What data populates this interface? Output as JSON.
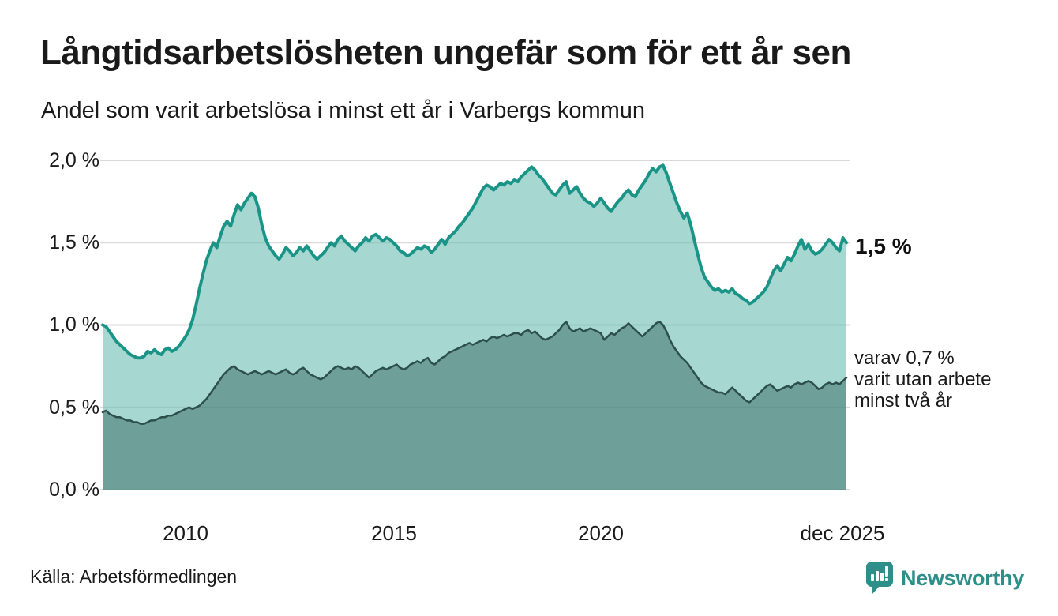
{
  "header": {
    "title": "Långtidsarbetslösheten ungefär som för ett år sen",
    "subtitle": "Andel som varit arbetslösa i minst ett år i Varbergs kommun"
  },
  "colors": {
    "line_primary": "#1b9488",
    "fill_primary": "rgba(106,190,178,0.6)",
    "line_secondary": "#2d4f4b",
    "fill_secondary": "rgba(53,103,98,0.5)",
    "gridline": "#d9d9d9",
    "brand_teal": "#2e8f88",
    "text": "#1a1a1a"
  },
  "chart_data": {
    "type": "area",
    "title": "Långtidsarbetslösheten ungefär som för ett år sen",
    "subtitle": "Andel som varit arbetslösa i minst ett år i Varbergs kommun",
    "unit": "%",
    "x_start_year": 2008,
    "x_end": "dec 2025",
    "months_per_point": 1,
    "ylim": [
      0,
      2.0
    ],
    "grid": true,
    "yticks": [
      {
        "label": "2,0 %",
        "value": 2.0
      },
      {
        "label": "1,5 %",
        "value": 1.5
      },
      {
        "label": "1,0 %",
        "value": 1.0
      },
      {
        "label": "0,5 %",
        "value": 0.5
      },
      {
        "label": "0,0 %",
        "value": 0.0
      }
    ],
    "xticks": [
      {
        "label": "2010",
        "year": 2010.0
      },
      {
        "label": "2015",
        "year": 2015.0
      },
      {
        "label": "2020",
        "year": 2020.0
      },
      {
        "label": "dec 2025",
        "year": 2025.9167
      }
    ],
    "series": [
      {
        "name": "Andel arbetslösa minst ett år",
        "end_label": "1,5 %",
        "last_value": 1.5,
        "values": [
          1.0,
          0.99,
          0.96,
          0.93,
          0.9,
          0.88,
          0.86,
          0.84,
          0.82,
          0.81,
          0.8,
          0.8,
          0.81,
          0.84,
          0.83,
          0.85,
          0.83,
          0.82,
          0.85,
          0.86,
          0.84,
          0.85,
          0.87,
          0.9,
          0.93,
          0.97,
          1.03,
          1.12,
          1.22,
          1.31,
          1.39,
          1.45,
          1.5,
          1.47,
          1.54,
          1.6,
          1.63,
          1.6,
          1.67,
          1.73,
          1.7,
          1.74,
          1.77,
          1.8,
          1.78,
          1.71,
          1.61,
          1.53,
          1.48,
          1.45,
          1.42,
          1.4,
          1.43,
          1.47,
          1.45,
          1.42,
          1.44,
          1.47,
          1.45,
          1.48,
          1.45,
          1.42,
          1.4,
          1.42,
          1.44,
          1.47,
          1.5,
          1.48,
          1.52,
          1.54,
          1.51,
          1.49,
          1.47,
          1.45,
          1.48,
          1.5,
          1.53,
          1.51,
          1.54,
          1.55,
          1.53,
          1.51,
          1.53,
          1.52,
          1.5,
          1.48,
          1.45,
          1.44,
          1.42,
          1.43,
          1.45,
          1.47,
          1.46,
          1.48,
          1.47,
          1.44,
          1.46,
          1.49,
          1.52,
          1.49,
          1.53,
          1.55,
          1.57,
          1.6,
          1.62,
          1.65,
          1.68,
          1.71,
          1.75,
          1.79,
          1.83,
          1.85,
          1.84,
          1.82,
          1.84,
          1.86,
          1.85,
          1.87,
          1.86,
          1.88,
          1.87,
          1.9,
          1.92,
          1.94,
          1.96,
          1.94,
          1.91,
          1.89,
          1.86,
          1.83,
          1.8,
          1.79,
          1.82,
          1.85,
          1.87,
          1.8,
          1.82,
          1.84,
          1.8,
          1.77,
          1.75,
          1.74,
          1.72,
          1.74,
          1.77,
          1.74,
          1.71,
          1.69,
          1.72,
          1.75,
          1.77,
          1.8,
          1.82,
          1.79,
          1.78,
          1.82,
          1.85,
          1.88,
          1.92,
          1.95,
          1.93,
          1.96,
          1.97,
          1.92,
          1.86,
          1.8,
          1.74,
          1.69,
          1.65,
          1.68,
          1.61,
          1.52,
          1.43,
          1.35,
          1.29,
          1.26,
          1.23,
          1.21,
          1.22,
          1.2,
          1.21,
          1.2,
          1.22,
          1.19,
          1.18,
          1.16,
          1.15,
          1.13,
          1.14,
          1.16,
          1.18,
          1.2,
          1.23,
          1.28,
          1.33,
          1.36,
          1.33,
          1.37,
          1.41,
          1.39,
          1.43,
          1.48,
          1.52,
          1.46,
          1.49,
          1.45,
          1.43,
          1.44,
          1.46,
          1.49,
          1.52,
          1.5,
          1.47,
          1.45,
          1.53,
          1.5
        ]
      },
      {
        "name": "varav utan arbete minst två år",
        "end_label": "varav 0,7 % varit utan arbete minst två år",
        "last_value": 0.7,
        "values": [
          0.47,
          0.48,
          0.46,
          0.45,
          0.44,
          0.44,
          0.43,
          0.42,
          0.42,
          0.41,
          0.41,
          0.4,
          0.4,
          0.41,
          0.42,
          0.42,
          0.43,
          0.44,
          0.44,
          0.45,
          0.45,
          0.46,
          0.47,
          0.48,
          0.49,
          0.5,
          0.49,
          0.5,
          0.51,
          0.53,
          0.55,
          0.58,
          0.61,
          0.64,
          0.67,
          0.7,
          0.72,
          0.74,
          0.75,
          0.73,
          0.72,
          0.71,
          0.7,
          0.71,
          0.72,
          0.71,
          0.7,
          0.71,
          0.72,
          0.71,
          0.7,
          0.71,
          0.72,
          0.73,
          0.71,
          0.7,
          0.71,
          0.73,
          0.74,
          0.72,
          0.7,
          0.69,
          0.68,
          0.67,
          0.68,
          0.7,
          0.72,
          0.74,
          0.75,
          0.74,
          0.73,
          0.74,
          0.73,
          0.75,
          0.74,
          0.72,
          0.7,
          0.68,
          0.7,
          0.72,
          0.73,
          0.74,
          0.73,
          0.74,
          0.75,
          0.76,
          0.74,
          0.73,
          0.74,
          0.76,
          0.77,
          0.78,
          0.77,
          0.79,
          0.8,
          0.77,
          0.76,
          0.78,
          0.8,
          0.81,
          0.83,
          0.84,
          0.85,
          0.86,
          0.87,
          0.88,
          0.89,
          0.88,
          0.89,
          0.9,
          0.91,
          0.9,
          0.92,
          0.93,
          0.92,
          0.93,
          0.94,
          0.93,
          0.94,
          0.95,
          0.95,
          0.94,
          0.96,
          0.97,
          0.95,
          0.96,
          0.94,
          0.92,
          0.91,
          0.92,
          0.93,
          0.95,
          0.97,
          1.0,
          1.02,
          0.98,
          0.96,
          0.97,
          0.98,
          0.96,
          0.97,
          0.98,
          0.97,
          0.96,
          0.95,
          0.91,
          0.93,
          0.95,
          0.94,
          0.96,
          0.98,
          0.99,
          1.01,
          0.99,
          0.97,
          0.95,
          0.93,
          0.95,
          0.97,
          0.99,
          1.01,
          1.02,
          1.0,
          0.96,
          0.91,
          0.87,
          0.84,
          0.81,
          0.79,
          0.77,
          0.74,
          0.71,
          0.68,
          0.65,
          0.63,
          0.62,
          0.61,
          0.6,
          0.59,
          0.59,
          0.58,
          0.6,
          0.62,
          0.6,
          0.58,
          0.56,
          0.54,
          0.53,
          0.55,
          0.57,
          0.59,
          0.61,
          0.63,
          0.64,
          0.62,
          0.6,
          0.61,
          0.62,
          0.63,
          0.62,
          0.64,
          0.65,
          0.64,
          0.65,
          0.66,
          0.65,
          0.63,
          0.61,
          0.62,
          0.64,
          0.65,
          0.64,
          0.65,
          0.64,
          0.66,
          0.68
        ]
      }
    ]
  },
  "annotations": {
    "primary_end_label": "1,5 %",
    "secondary_line1": "varav 0,7 %",
    "secondary_line2": "varit utan arbete",
    "secondary_line3": "minst två år"
  },
  "footer": {
    "source": "Källa: Arbetsförmedlingen",
    "brand_name": "Newsworthy"
  }
}
